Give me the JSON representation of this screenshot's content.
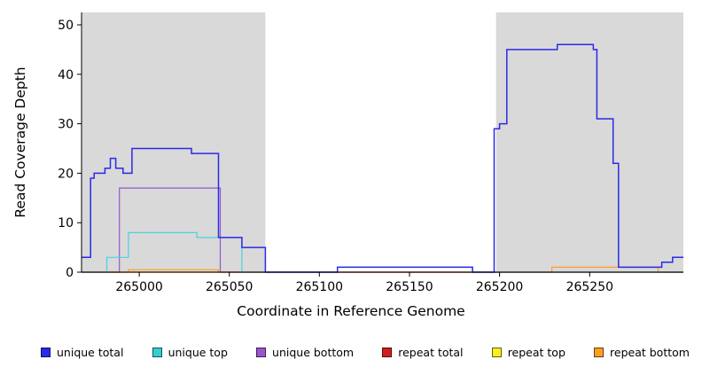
{
  "chart_data": {
    "type": "line",
    "step": true,
    "title": "",
    "xlabel": "Coordinate in Reference Genome",
    "ylabel": "Read Coverage Depth",
    "xlim": [
      264968,
      265302
    ],
    "ylim": [
      0,
      52.5
    ],
    "x_ticks": [
      265000,
      265050,
      265100,
      265150,
      265200,
      265250
    ],
    "y_ticks": [
      0,
      10,
      20,
      30,
      40,
      50
    ],
    "grid": false,
    "legend_position": "bottom",
    "shade_color": "#d9d9d9",
    "shaded_regions": [
      [
        264968,
        265070
      ],
      [
        265198,
        265302
      ]
    ],
    "series": [
      {
        "name": "repeat top",
        "color": "#f5f01e",
        "width": 1.2,
        "points": [
          [
            264968,
            0
          ]
        ]
      },
      {
        "name": "repeat bottom",
        "color": "#ff9f20",
        "width": 1.2,
        "points": [
          [
            264968,
            0
          ],
          [
            264994,
            0.5
          ],
          [
            265044,
            0
          ],
          [
            265229,
            1
          ],
          [
            265288,
            0
          ]
        ]
      },
      {
        "name": "repeat total",
        "color": "#d01f1f",
        "width": 1.2,
        "points": [
          [
            264968,
            0
          ]
        ]
      },
      {
        "name": "unique bottom",
        "color": "#9955cc",
        "width": 1.2,
        "points": [
          [
            264968,
            0
          ],
          [
            264989,
            17
          ],
          [
            265045,
            0
          ]
        ]
      },
      {
        "name": "unique top",
        "color": "#49d2dc",
        "width": 1.2,
        "points": [
          [
            264968,
            0
          ],
          [
            264982,
            3
          ],
          [
            264994,
            8
          ],
          [
            265032,
            7
          ],
          [
            265057,
            0
          ],
          [
            265110,
            1
          ],
          [
            265185,
            0
          ]
        ]
      },
      {
        "name": "unique total",
        "color": "#2a2ae8",
        "width": 1.5,
        "points": [
          [
            264968,
            3
          ],
          [
            264973,
            19
          ],
          [
            264975,
            20
          ],
          [
            264981,
            21
          ],
          [
            264984,
            23
          ],
          [
            264987,
            21
          ],
          [
            264991,
            20
          ],
          [
            264996,
            25
          ],
          [
            265029,
            24
          ],
          [
            265044,
            7
          ],
          [
            265057,
            5
          ],
          [
            265070,
            0
          ],
          [
            265110,
            1
          ],
          [
            265185,
            0
          ],
          [
            265197,
            29
          ],
          [
            265200,
            30
          ],
          [
            265204,
            45
          ],
          [
            265232,
            46
          ],
          [
            265252,
            45
          ],
          [
            265254,
            31
          ],
          [
            265263,
            22
          ],
          [
            265266,
            1
          ],
          [
            265290,
            2
          ],
          [
            265296,
            3
          ]
        ]
      }
    ],
    "legend": [
      {
        "label": "unique total",
        "color": "#2a2ae8"
      },
      {
        "label": "unique top",
        "color": "#35cdd3"
      },
      {
        "label": "unique bottom",
        "color": "#9955cc"
      },
      {
        "label": "repeat total",
        "color": "#d01f1f"
      },
      {
        "label": "repeat top",
        "color": "#f5f01e"
      },
      {
        "label": "repeat bottom",
        "color": "#ff9f20"
      }
    ]
  }
}
